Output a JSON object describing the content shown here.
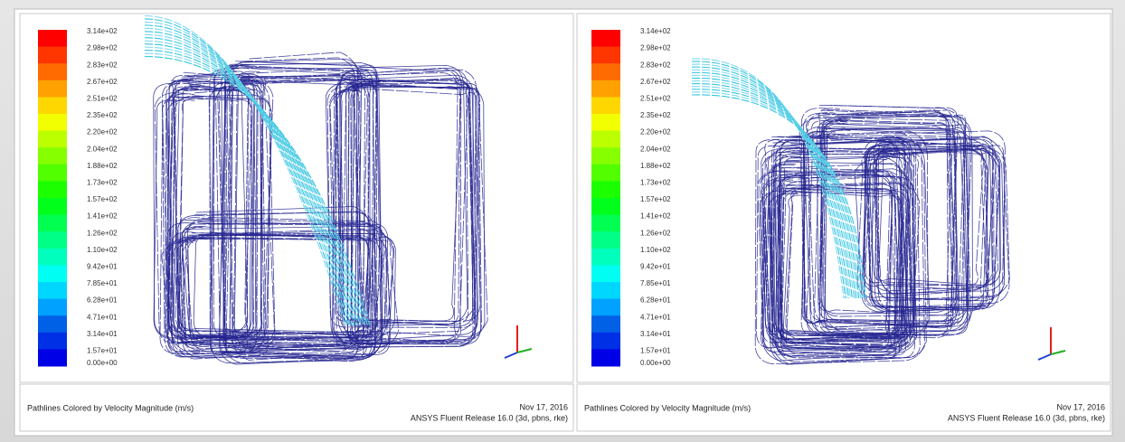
{
  "panels": [
    {
      "colorbar": {
        "labels": [
          "3.14e+02",
          "2.98e+02",
          "2.83e+02",
          "2.67e+02",
          "2.51e+02",
          "2.35e+02",
          "2.20e+02",
          "2.04e+02",
          "1.88e+02",
          "1.73e+02",
          "1.57e+02",
          "1.41e+02",
          "1.26e+02",
          "1.10e+02",
          "9.42e+01",
          "7.85e+01",
          "6.28e+01",
          "4.71e+01",
          "3.14e+01",
          "1.57e+01",
          "0.00e+00"
        ]
      },
      "caption": "Pathlines Colored by Velocity Magnitude (m/s)",
      "date": "Nov 17, 2016",
      "release": "ANSYS Fluent Release 16.0 (3d, pbns, rke)"
    },
    {
      "colorbar": {
        "labels": [
          "3.14e+02",
          "2.98e+02",
          "2.83e+02",
          "2.67e+02",
          "2.51e+02",
          "2.35e+02",
          "2.20e+02",
          "2.04e+02",
          "1.88e+02",
          "1.73e+02",
          "1.57e+02",
          "1.41e+02",
          "1.26e+02",
          "1.10e+02",
          "9.42e+01",
          "7.85e+01",
          "6.28e+01",
          "4.71e+01",
          "3.14e+01",
          "1.57e+01",
          "0.00e+00"
        ]
      },
      "caption": "Pathlines Colored by Velocity Magnitude (m/s)",
      "date": "Nov 17, 2016",
      "release": "ANSYS Fluent Release 16.0 (3d, pbns, rke)"
    }
  ]
}
